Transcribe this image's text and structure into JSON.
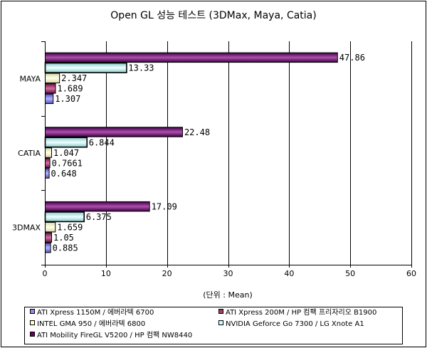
{
  "chart_data": {
    "type": "bar",
    "orientation": "horizontal",
    "title": "Open GL 성능 테스트 (3DMax, Maya, Catia)",
    "xlabel": "(단위 : Mean)",
    "ylabel": "",
    "xlim": [
      0,
      60
    ],
    "xticks": [
      "0",
      "10",
      "20",
      "30",
      "40",
      "50",
      "60"
    ],
    "grid": true,
    "legend_position": "bottom",
    "categories": [
      "MAYA",
      "CATIA",
      "3DMAX"
    ],
    "series": [
      {
        "name": "ATI Xpress 1150M / 에버라텍 6700",
        "values": [
          1.307,
          0.648,
          0.885
        ],
        "labels": [
          "1.307",
          "0.648",
          "0.885"
        ],
        "color": "#8C8CE6"
      },
      {
        "name": "ATI Xpress 200M / HP 컴팩 프리자리오 B1900",
        "values": [
          1.689,
          0.7661,
          1.05
        ],
        "labels": [
          "1.689",
          "0.7661",
          "1.05"
        ],
        "color": "#A0406A"
      },
      {
        "name": "INTEL GMA 950 / 에버라텍 6800",
        "values": [
          2.347,
          1.047,
          1.659
        ],
        "labels": [
          "2.347",
          "1.047",
          "1.659"
        ],
        "color": "#FFFFCC"
      },
      {
        "name": "NVIDIA Geforce Go 7300 / LG Xnote A1",
        "values": [
          13.33,
          6.844,
          6.375
        ],
        "labels": [
          "13.33",
          "6.844",
          "6.375"
        ],
        "color": "#CCFFFF"
      },
      {
        "name": "ATI Mobility FireGL V5200 / HP 컴팩 NW8440",
        "values": [
          47.86,
          22.48,
          17.09
        ],
        "labels": [
          "47.86",
          "22.48",
          "17.09"
        ],
        "color": "#660066"
      }
    ]
  }
}
